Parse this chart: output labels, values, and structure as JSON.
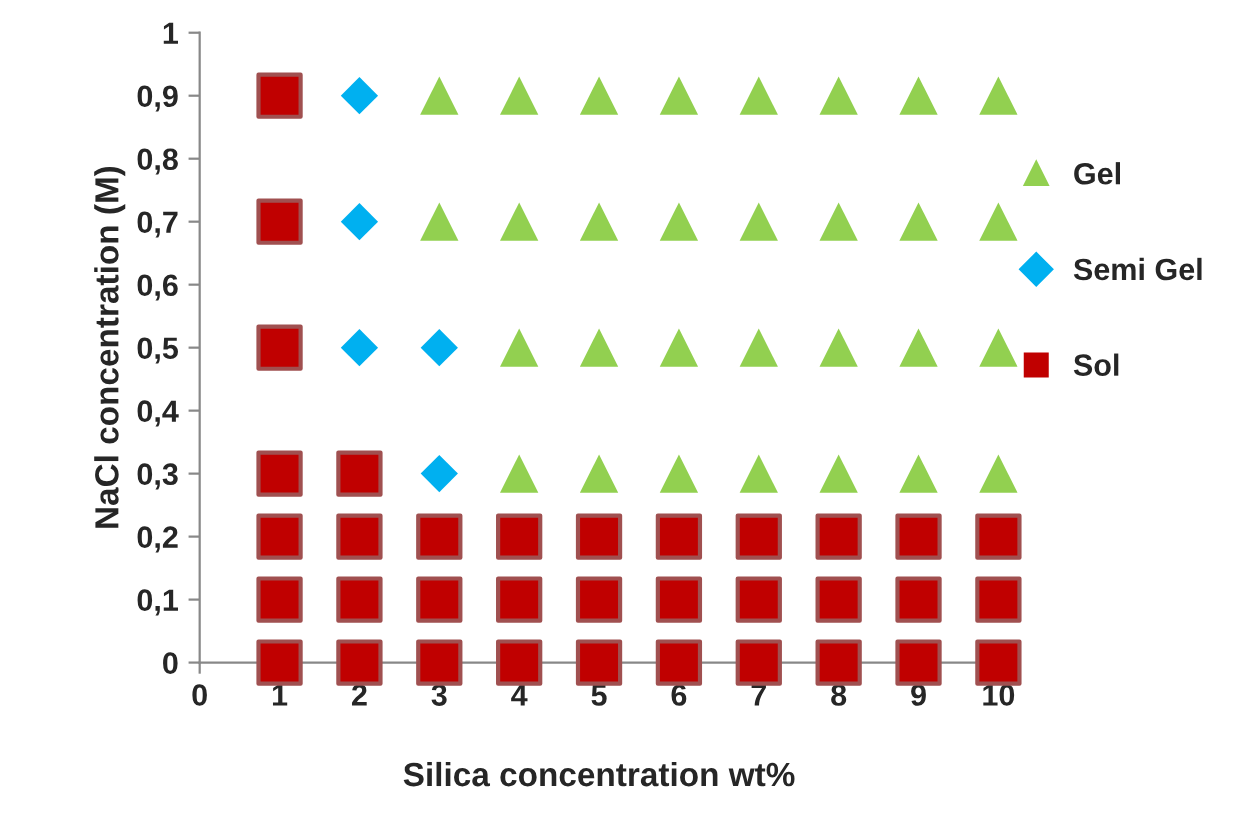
{
  "chart_data": {
    "type": "scatter",
    "xlabel": "Silica concentration wt%",
    "ylabel": "NaCl concentration (M)",
    "xlim": [
      0,
      10
    ],
    "xticks": [
      0,
      1,
      2,
      3,
      4,
      5,
      6,
      7,
      8,
      9,
      10
    ],
    "ylim": [
      0,
      1
    ],
    "yticks": [
      0,
      {
        "value": 0.1,
        "label": "0,1"
      },
      {
        "value": 0.2,
        "label": "0,2"
      },
      {
        "value": 0.3,
        "label": "0,3"
      },
      {
        "value": 0.4,
        "label": "0,4"
      },
      {
        "value": 0.5,
        "label": "0,5"
      },
      {
        "value": 0.6,
        "label": "0,6"
      },
      {
        "value": 0.7,
        "label": "0,7"
      },
      {
        "value": 0.8,
        "label": "0,8"
      },
      {
        "value": 0.9,
        "label": "0,9"
      },
      1
    ],
    "grid": false,
    "legend": "right",
    "series": [
      {
        "name": "Gel",
        "color": "#92d050",
        "marker": "triangle",
        "x": [
          4,
          5,
          6,
          7,
          8,
          9,
          10,
          4,
          5,
          6,
          7,
          8,
          9,
          10,
          3,
          4,
          5,
          6,
          7,
          8,
          9,
          10,
          3,
          4,
          5,
          6,
          7,
          8,
          9,
          10
        ],
        "values": [
          0.3,
          0.3,
          0.3,
          0.3,
          0.3,
          0.3,
          0.3,
          0.5,
          0.5,
          0.5,
          0.5,
          0.5,
          0.5,
          0.5,
          0.7,
          0.7,
          0.7,
          0.7,
          0.7,
          0.7,
          0.7,
          0.7,
          0.9,
          0.9,
          0.9,
          0.9,
          0.9,
          0.9,
          0.9,
          0.9
        ]
      },
      {
        "name": "Semi Gel",
        "color": "#00b0f0",
        "marker": "diamond",
        "x": [
          3,
          2,
          3,
          2,
          2
        ],
        "values": [
          0.3,
          0.5,
          0.5,
          0.7,
          0.9
        ]
      },
      {
        "name": "Sol",
        "color": "#c00000",
        "marker": "square",
        "x": [
          1,
          2,
          1,
          1,
          1,
          1,
          2,
          3,
          4,
          5,
          6,
          7,
          8,
          9,
          10,
          1,
          2,
          3,
          4,
          5,
          6,
          7,
          8,
          9,
          10,
          1,
          2,
          3,
          4,
          5,
          6,
          7,
          8,
          9,
          10
        ],
        "values": [
          0.3,
          0.3,
          0.5,
          0.7,
          0.9,
          0,
          0,
          0,
          0,
          0,
          0,
          0,
          0,
          0,
          0,
          0.1,
          0.1,
          0.1,
          0.1,
          0.1,
          0.1,
          0.1,
          0.1,
          0.1,
          0.1,
          0.2,
          0.2,
          0.2,
          0.2,
          0.2,
          0.2,
          0.2,
          0.2,
          0.2,
          0.2
        ]
      }
    ]
  }
}
